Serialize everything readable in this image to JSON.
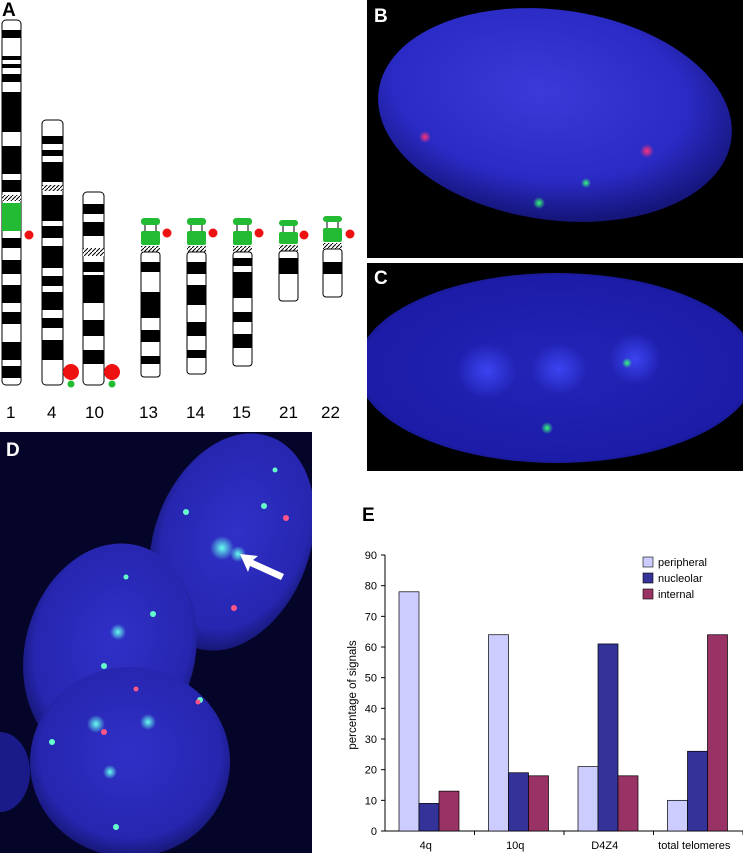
{
  "panels": {
    "a": "A",
    "b": "B",
    "c": "C",
    "d": "D",
    "e": "E"
  },
  "ideogram": {
    "labels": [
      "1",
      "4",
      "10",
      "13",
      "14",
      "15",
      "21",
      "22"
    ]
  },
  "chart_data": {
    "type": "bar",
    "categories": [
      "4q",
      "10q",
      "D4Z4",
      "total telomeres"
    ],
    "series": [
      {
        "name": "peripheral",
        "values": [
          78,
          64,
          21,
          10
        ],
        "color": "#ccccff"
      },
      {
        "name": "nucleolar",
        "values": [
          9,
          19,
          61,
          26
        ],
        "color": "#333399"
      },
      {
        "name": "internal",
        "values": [
          13,
          18,
          18,
          64
        ],
        "color": "#993366"
      }
    ],
    "ylabel": "percentage of signals",
    "xlabel": "",
    "ylim": [
      0,
      90
    ],
    "yticks": [
      0,
      10,
      20,
      30,
      40,
      50,
      60,
      70,
      80,
      90
    ],
    "legend_position": "top-right",
    "grid": false
  },
  "colors": {
    "nucleus": "#2a2ad0",
    "green_probe": "#22dd55",
    "red_probe": "#ee1144"
  }
}
